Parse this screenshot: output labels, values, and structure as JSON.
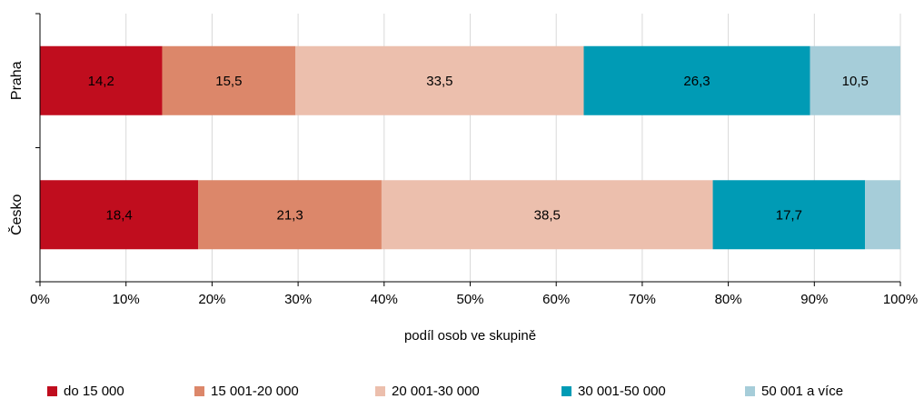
{
  "chart_data": {
    "type": "bar",
    "orientation": "horizontal",
    "stacked": true,
    "categories": [
      "Praha",
      "Česko"
    ],
    "series": [
      {
        "name": "do 15 000",
        "color": "#c00d1e",
        "values": [
          14.2,
          18.4
        ],
        "labels": [
          "14,2",
          "18,4"
        ]
      },
      {
        "name": "15 001-20 000",
        "color": "#dc876a",
        "values": [
          15.5,
          21.3
        ],
        "labels": [
          "15,5",
          "21,3"
        ]
      },
      {
        "name": "20 001-30 000",
        "color": "#ecbfad",
        "values": [
          33.5,
          38.5
        ],
        "labels": [
          "33,5",
          "38,5"
        ]
      },
      {
        "name": "30 001-50 000",
        "color": "#009bb5",
        "values": [
          26.3,
          17.7
        ],
        "labels": [
          "26,3",
          "17,7"
        ]
      },
      {
        "name": "50 001 a více",
        "color": "#a6cdd9",
        "values": [
          10.5,
          4.1
        ],
        "labels": [
          "10,5",
          ""
        ]
      }
    ],
    "xlabel": "podíl osob ve skupině",
    "ylabel": "",
    "xlim": [
      0,
      100
    ],
    "x_ticks": [
      0,
      10,
      20,
      30,
      40,
      50,
      60,
      70,
      80,
      90,
      100
    ],
    "x_tick_labels": [
      "0%",
      "10%",
      "20%",
      "30%",
      "40%",
      "50%",
      "60%",
      "70%",
      "80%",
      "90%",
      "100%"
    ],
    "grid": true,
    "legend_position": "bottom"
  }
}
